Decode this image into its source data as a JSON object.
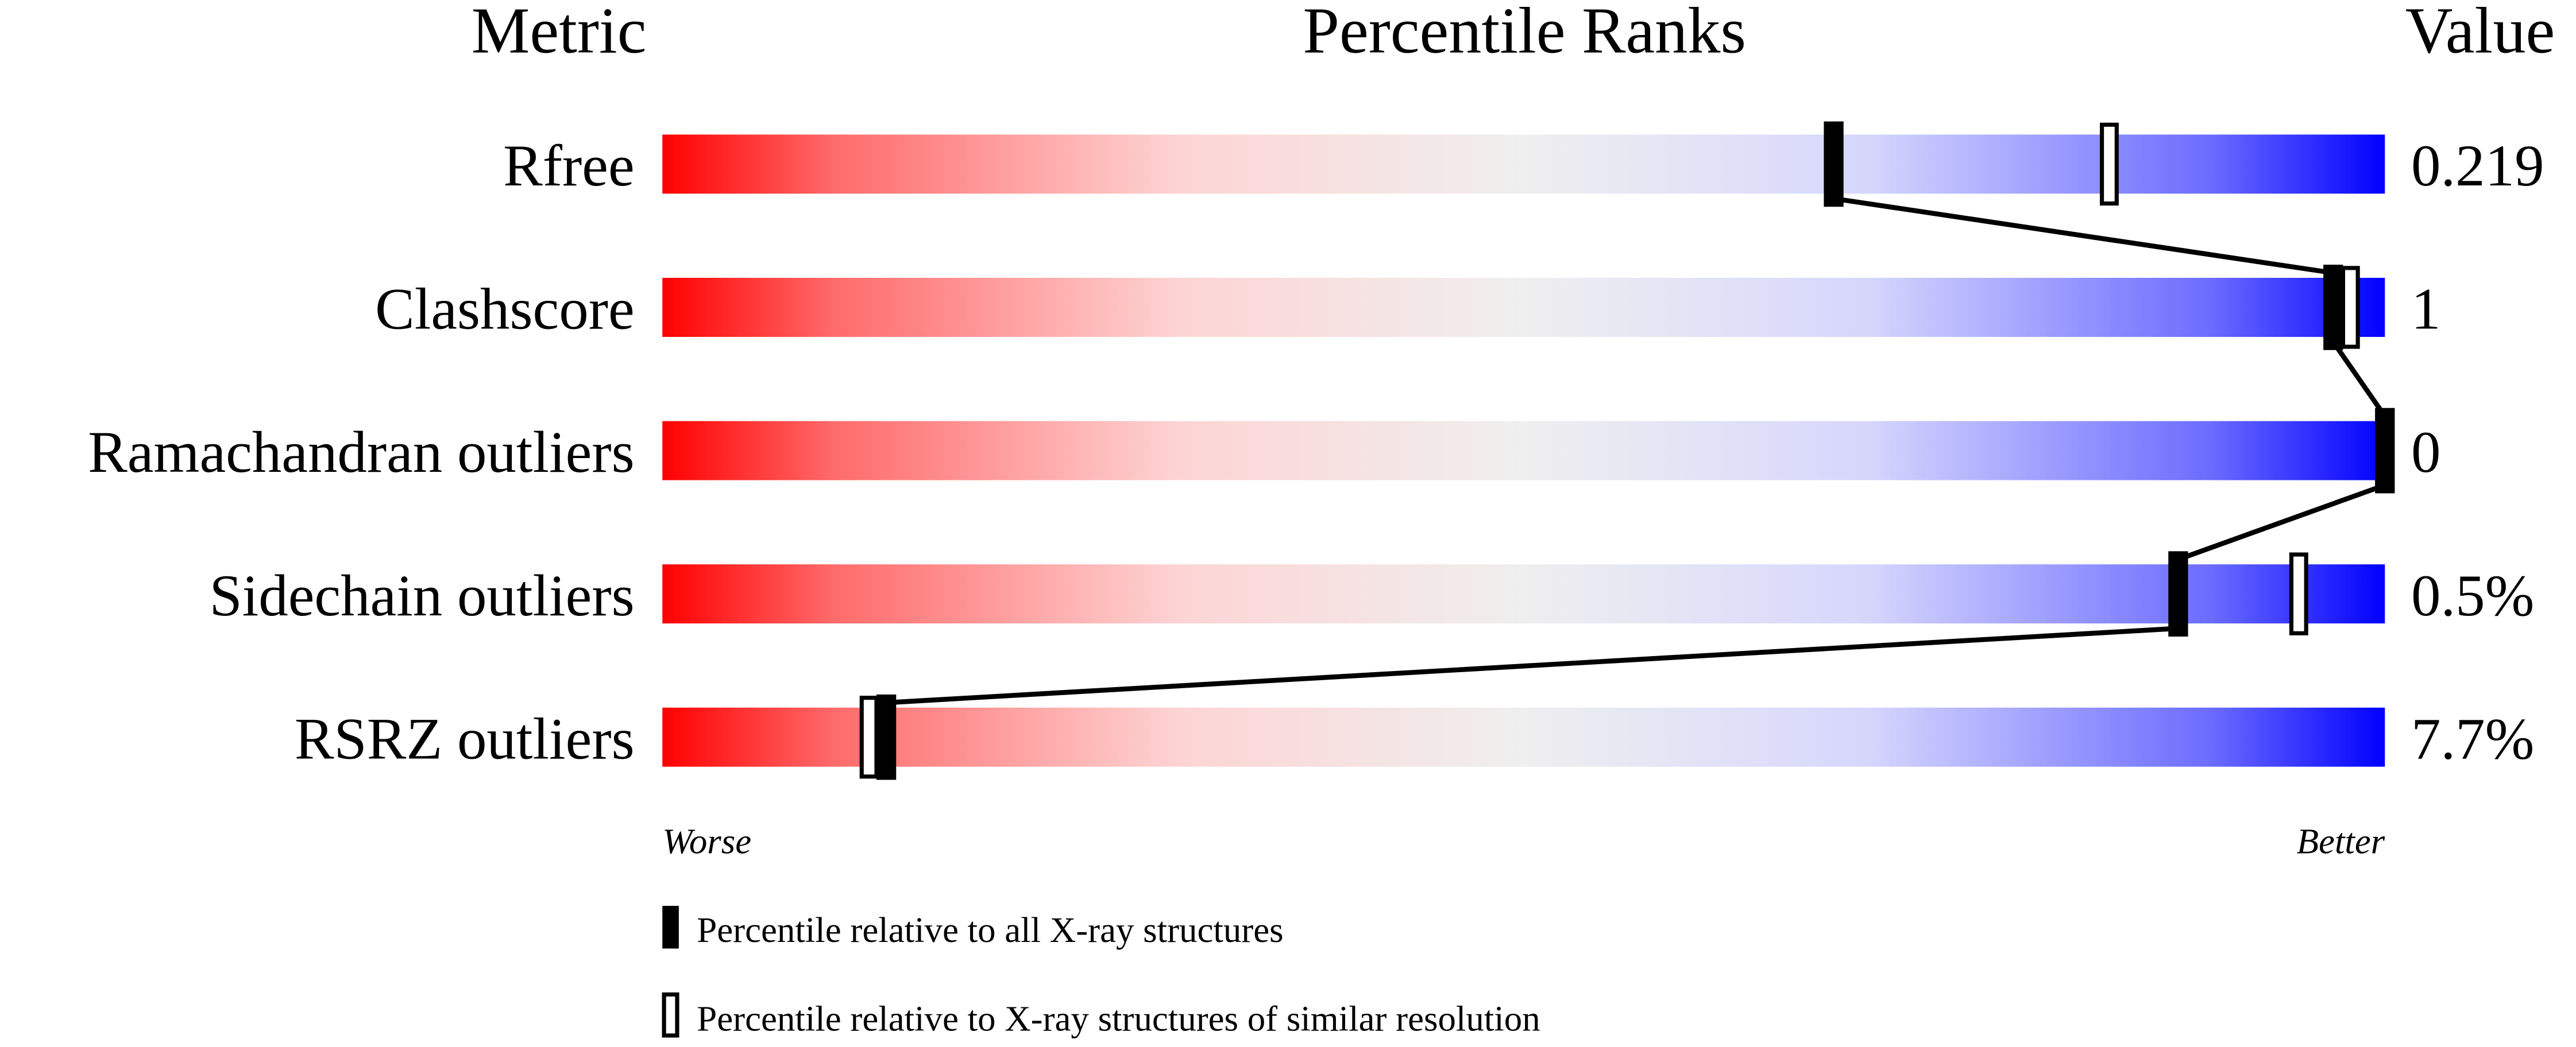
{
  "chart_data": {
    "type": "percentile-slider",
    "headers": {
      "metric": "Metric",
      "ranks": "Percentile Ranks",
      "value": "Value"
    },
    "xlim": [
      0,
      100
    ],
    "axis_left": "Worse",
    "axis_right": "Better",
    "gradient_colors": [
      "#ff0000",
      "#f0f0f0",
      "#0000ff"
    ],
    "rows": [
      {
        "metric": "Rfree",
        "value": "0.219",
        "percentile_all": 68,
        "percentile_similar": 84
      },
      {
        "metric": "Clashscore",
        "value": "1",
        "percentile_all": 97,
        "percentile_similar": 98
      },
      {
        "metric": "Ramachandran outliers",
        "value": "0",
        "percentile_all": 100,
        "percentile_similar": 100
      },
      {
        "metric": "Sidechain outliers",
        "value": "0.5%",
        "percentile_all": 88,
        "percentile_similar": 95
      },
      {
        "metric": "RSRZ outliers",
        "value": "7.7%",
        "percentile_all": 13,
        "percentile_similar": 12
      }
    ],
    "legend": [
      {
        "marker": "filled",
        "label": "Percentile relative to all X-ray structures"
      },
      {
        "marker": "hollow",
        "label": "Percentile relative to X-ray structures of similar resolution"
      }
    ]
  }
}
